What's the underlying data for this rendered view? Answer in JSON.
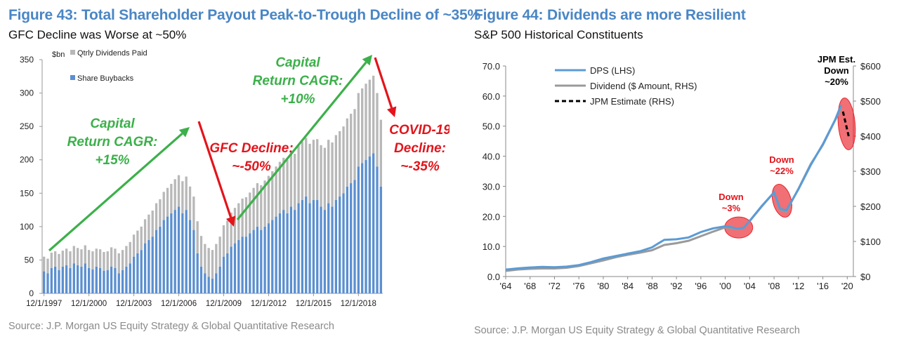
{
  "colors": {
    "title_blue": "#4a86c5",
    "buyback_blue": "#5b8fd0",
    "dividend_gray": "#b8b8b8",
    "arrow_green": "#3cb04a",
    "arrow_red": "#e3141b",
    "dps_line": "#5b9bd5",
    "dividend_line": "#9a9a9a",
    "ellipse_red": "#e8242b"
  },
  "left": {
    "title": "Figure 43: Total Shareholder Payout Peak-to-Trough Decline of ~35%",
    "subtitle": "GFC Decline was Worse at ~50%",
    "source": "Source: J.P. Morgan US Equity Strategy & Global Quantitative Research",
    "annotations": {
      "cagr1": [
        "Capital",
        "Return CAGR:",
        "+15%"
      ],
      "gfc": [
        "GFC Decline:",
        "~-50%"
      ],
      "cagr2": [
        "Capital",
        "Return CAGR:",
        "+10%"
      ],
      "covid": [
        "COVID-19",
        "Decline:",
        "~-35%"
      ]
    }
  },
  "right": {
    "title": "Figure 44: Dividends are more Resilient",
    "subtitle": "S&P 500 Historical Constituents",
    "source": "Source: J.P. Morgan US Equity Strategy & Global Quantitative Research",
    "annotations": {
      "down3": [
        "Down",
        "~3%"
      ],
      "down22": [
        "Down",
        "~22%"
      ],
      "jpm": [
        "JPM Est.",
        "Down",
        "~20%"
      ]
    }
  },
  "chart_data": [
    {
      "type": "bar",
      "stacked": true,
      "title": "Figure 43: Total Shareholder Payout Peak-to-Trough Decline of ~35%",
      "unit_label": "$bn",
      "ylim": [
        0,
        350
      ],
      "yticks": [
        0,
        50,
        100,
        150,
        200,
        250,
        300,
        350
      ],
      "x_tick_labels": [
        "12/1/1997",
        "12/1/2000",
        "12/1/2003",
        "12/1/2006",
        "12/1/2009",
        "12/1/2012",
        "12/1/2015",
        "12/1/2018"
      ],
      "x_tick_index": [
        0,
        12,
        24,
        36,
        48,
        60,
        72,
        84
      ],
      "legend": [
        "Qtrly Dividends Paid",
        "Share Buybacks"
      ],
      "legend_position": "top-left",
      "series": [
        {
          "name": "Share Buybacks",
          "values": [
            33,
            30,
            38,
            40,
            35,
            40,
            42,
            38,
            45,
            42,
            40,
            45,
            38,
            36,
            40,
            38,
            34,
            35,
            40,
            38,
            30,
            35,
            40,
            45,
            55,
            60,
            65,
            75,
            80,
            85,
            95,
            100,
            110,
            115,
            120,
            125,
            130,
            120,
            125,
            110,
            95,
            60,
            40,
            30,
            25,
            22,
            30,
            40,
            55,
            60,
            70,
            75,
            80,
            85,
            85,
            90,
            95,
            100,
            95,
            100,
            105,
            110,
            115,
            120,
            125,
            120,
            130,
            125,
            135,
            140,
            145,
            135,
            140,
            140,
            130,
            125,
            135,
            130,
            140,
            145,
            150,
            160,
            165,
            170,
            190,
            195,
            200,
            205,
            210,
            190,
            160
          ]
        },
        {
          "name": "Qtrly Dividends Paid",
          "values": [
            22,
            22,
            23,
            23,
            24,
            24,
            25,
            25,
            26,
            26,
            26,
            27,
            27,
            27,
            27,
            28,
            28,
            28,
            29,
            29,
            30,
            30,
            31,
            32,
            33,
            34,
            35,
            36,
            38,
            39,
            40,
            41,
            42,
            43,
            44,
            46,
            47,
            48,
            50,
            50,
            50,
            48,
            46,
            44,
            43,
            43,
            44,
            45,
            47,
            49,
            51,
            53,
            55,
            57,
            59,
            61,
            63,
            65,
            67,
            69,
            71,
            73,
            75,
            77,
            78,
            80,
            82,
            84,
            86,
            87,
            88,
            89,
            90,
            91,
            92,
            93,
            95,
            96,
            97,
            98,
            100,
            102,
            104,
            106,
            110,
            112,
            114,
            115,
            116,
            110,
            100
          ]
        }
      ]
    },
    {
      "type": "line",
      "title": "Figure 44: Dividends are more Resilient",
      "x_tick_labels": [
        "'64",
        "'68",
        "'72",
        "'76",
        "'80",
        "'84",
        "'88",
        "'92",
        "'96",
        "'00",
        "'04",
        "'08",
        "'12",
        "'16",
        "'20"
      ],
      "xlim": [
        1964,
        2021
      ],
      "ylim_left": [
        0,
        70
      ],
      "yticks_left": [
        "0.0",
        "10.0",
        "20.0",
        "30.0",
        "40.0",
        "50.0",
        "60.0",
        "70.0"
      ],
      "ylim_right": [
        0,
        600
      ],
      "yticks_right": [
        "$0",
        "$100",
        "$200",
        "$300",
        "$400",
        "$500",
        "$600"
      ],
      "legend": [
        "DPS (LHS)",
        "Dividend ($ Amount, RHS)",
        "JPM Estimate (RHS)"
      ],
      "legend_position": "top-left",
      "series": [
        {
          "name": "DPS (LHS)",
          "axis": "left",
          "x": [
            1964,
            1966,
            1968,
            1970,
            1972,
            1974,
            1976,
            1978,
            1980,
            1982,
            1984,
            1986,
            1988,
            1989,
            1990,
            1992,
            1994,
            1996,
            1998,
            2000,
            2001,
            2002,
            2003,
            2004,
            2006,
            2008,
            2009,
            2010,
            2012,
            2014,
            2016,
            2018,
            2019
          ],
          "y": [
            2.3,
            2.7,
            3.0,
            3.2,
            3.1,
            3.3,
            3.8,
            4.8,
            6.0,
            6.8,
            7.6,
            8.4,
            9.7,
            11.0,
            12.2,
            12.4,
            13.0,
            14.8,
            16.0,
            16.7,
            16.4,
            15.9,
            16.2,
            18.5,
            23.5,
            28.0,
            22.5,
            22.0,
            29.0,
            37.0,
            44.0,
            52.0,
            57.0
          ]
        },
        {
          "name": "Dividend ($ Amount, RHS)",
          "axis": "right",
          "x": [
            1964,
            1966,
            1968,
            1970,
            1972,
            1974,
            1976,
            1978,
            1980,
            1982,
            1984,
            1986,
            1988,
            1990,
            1992,
            1994,
            1996,
            1998,
            2000,
            2001,
            2002,
            2003,
            2004,
            2006,
            2008,
            2009,
            2010,
            2012,
            2014,
            2016,
            2018,
            2019
          ],
          "y": [
            16,
            20,
            22,
            23,
            23,
            25,
            30,
            38,
            46,
            55,
            62,
            68,
            75,
            90,
            95,
            102,
            115,
            128,
            140,
            138,
            135,
            140,
            158,
            200,
            240,
            190,
            185,
            250,
            320,
            375,
            445,
            480
          ]
        },
        {
          "name": "JPM Estimate (RHS)",
          "axis": "right",
          "x": [
            2019.3,
            2020.3
          ],
          "y": [
            470,
            395
          ]
        }
      ]
    }
  ]
}
